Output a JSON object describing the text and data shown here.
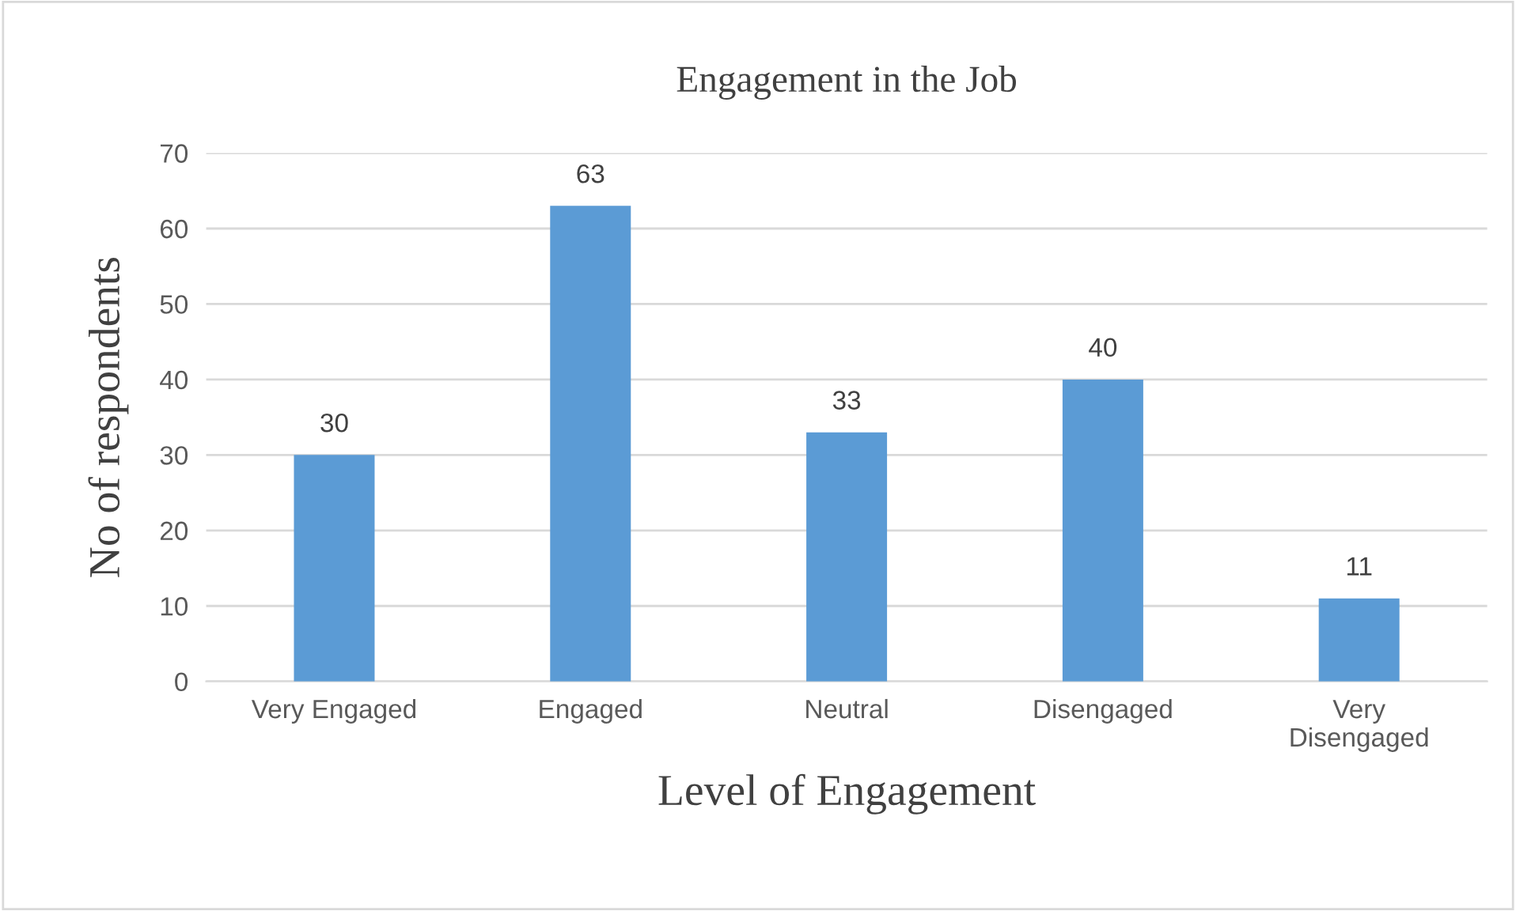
{
  "chart_data": {
    "type": "bar",
    "title": "Engagement in the Job",
    "xlabel": "Level of Engagement",
    "ylabel": "No of respondents",
    "categories": [
      "Very Engaged",
      "Engaged",
      "Neutral",
      "Disengaged",
      "Very Disengaged"
    ],
    "values": [
      30,
      63,
      33,
      40,
      11
    ],
    "color": "#5b9bd5",
    "ylim": [
      0,
      70
    ],
    "yticks": [
      0,
      10,
      20,
      30,
      40,
      50,
      60,
      70
    ],
    "grid": "y",
    "data_labels": true,
    "legend": false
  }
}
